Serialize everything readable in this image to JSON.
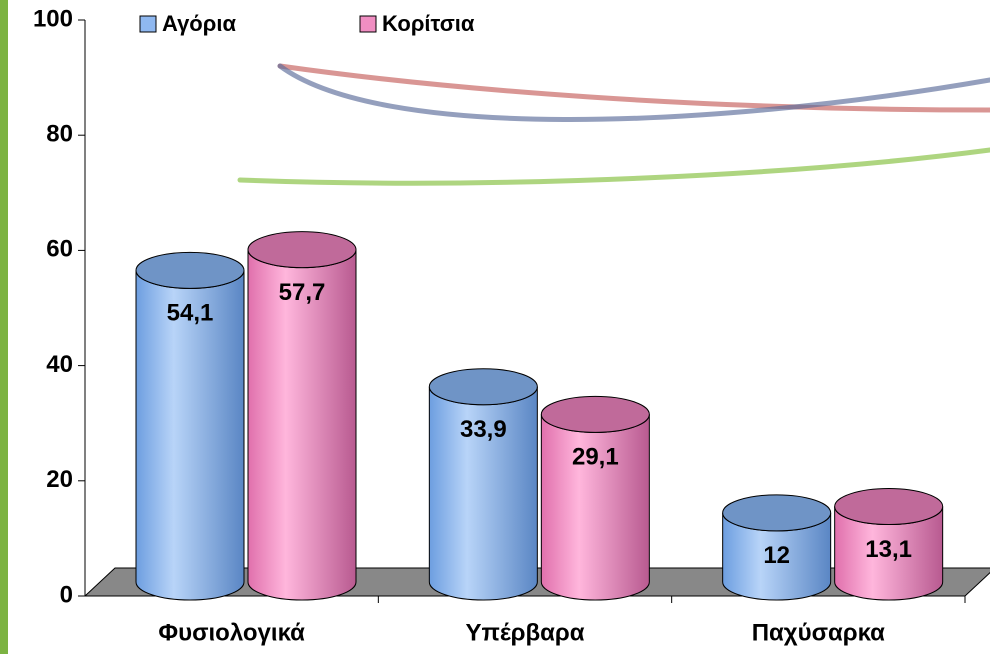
{
  "chart_data": {
    "type": "bar",
    "categories": [
      "Φυσιολογικά",
      "Υπέρβαρα",
      "Παχύσαρκα"
    ],
    "series": [
      {
        "name": "Αγόρια",
        "color": "#8fb8f0",
        "values": [
          54.1,
          33.9,
          12
        ],
        "value_labels": [
          "54,1",
          "33,9",
          "12"
        ]
      },
      {
        "name": "Κορίτσια",
        "color": "#f08ec2",
        "values": [
          57.7,
          29.1,
          13.1
        ],
        "value_labels": [
          "57,7",
          "29,1",
          "13,1"
        ]
      }
    ],
    "ylim": [
      0,
      100
    ],
    "yticks": [
      0,
      20,
      40,
      60,
      80,
      100
    ],
    "legend": "top"
  }
}
